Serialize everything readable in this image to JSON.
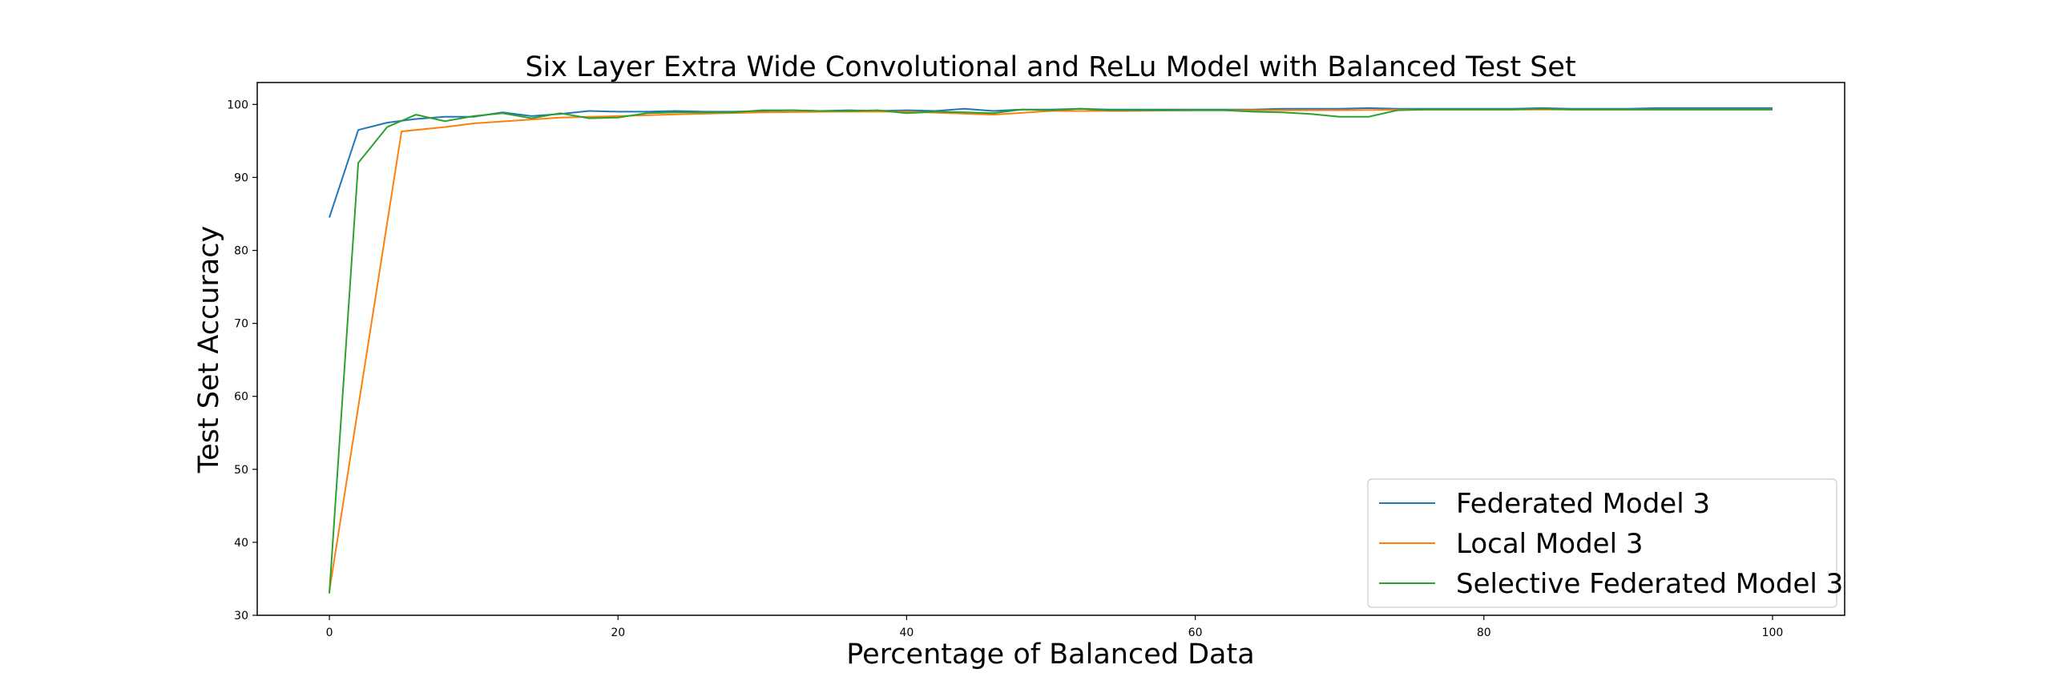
{
  "chart_data": {
    "type": "line",
    "title": "Six Layer Extra Wide Convolutional and ReLu Model with Balanced Test Set",
    "xlabel": "Percentage of Balanced Data",
    "ylabel": "Test Set Accuracy",
    "xlim": [
      -5,
      105
    ],
    "ylim": [
      30,
      103
    ],
    "xticks": [
      0,
      20,
      40,
      60,
      80,
      100
    ],
    "yticks": [
      30,
      40,
      50,
      60,
      70,
      80,
      90,
      100
    ],
    "xtick_labels": [
      "0",
      "20",
      "40",
      "60",
      "80",
      "100"
    ],
    "ytick_labels": [
      "30",
      "40",
      "50",
      "60",
      "70",
      "80",
      "90",
      "100"
    ],
    "grid": false,
    "legend_position": "bottom-right",
    "series": [
      {
        "name": "Federated Model 3",
        "color": "#1f77b4",
        "x": [
          0,
          2,
          4,
          6,
          8,
          10,
          12,
          14,
          16,
          18,
          20,
          22,
          24,
          26,
          28,
          30,
          32,
          34,
          36,
          38,
          40,
          42,
          44,
          46,
          48,
          50,
          52,
          54,
          56,
          58,
          60,
          62,
          64,
          66,
          68,
          70,
          72,
          74,
          76,
          78,
          80,
          82,
          84,
          86,
          88,
          90,
          92,
          94,
          96,
          98,
          100
        ],
        "y": [
          84.5,
          96.5,
          97.5,
          98.0,
          98.3,
          98.3,
          98.9,
          98.4,
          98.7,
          99.1,
          99.0,
          99.0,
          99.1,
          99.0,
          99.0,
          99.1,
          99.2,
          99.1,
          99.2,
          99.1,
          99.2,
          99.1,
          99.4,
          99.1,
          99.3,
          99.3,
          99.4,
          99.3,
          99.3,
          99.3,
          99.3,
          99.3,
          99.3,
          99.4,
          99.4,
          99.4,
          99.5,
          99.4,
          99.4,
          99.4,
          99.4,
          99.4,
          99.5,
          99.4,
          99.4,
          99.4,
          99.5,
          99.5,
          99.5,
          99.5,
          99.5
        ]
      },
      {
        "name": "Local Model 3",
        "color": "#ff7f0e",
        "x": [
          0,
          5,
          8,
          10,
          13,
          16,
          20,
          25,
          30,
          35,
          40,
          46,
          50,
          55,
          60,
          65,
          70,
          75,
          80,
          85,
          90,
          95,
          100
        ],
        "y": [
          33.3,
          96.3,
          96.9,
          97.4,
          97.8,
          98.2,
          98.4,
          98.7,
          98.9,
          99.0,
          99.0,
          98.6,
          99.1,
          99.1,
          99.2,
          99.2,
          99.2,
          99.3,
          99.3,
          99.3,
          99.3,
          99.3,
          99.3
        ]
      },
      {
        "name": "Selective Federated Model 3",
        "color": "#2ca02c",
        "x": [
          0,
          2,
          4,
          6,
          8,
          10,
          12,
          14,
          16,
          18,
          20,
          22,
          24,
          26,
          28,
          30,
          32,
          34,
          36,
          38,
          40,
          42,
          44,
          46,
          48,
          50,
          52,
          54,
          56,
          58,
          60,
          62,
          64,
          66,
          68,
          70,
          72,
          74,
          76,
          78,
          80,
          82,
          84,
          86,
          88,
          90,
          92,
          94,
          96,
          98,
          100
        ],
        "y": [
          33.0,
          92.0,
          96.9,
          98.6,
          97.7,
          98.4,
          98.8,
          98.1,
          98.8,
          98.1,
          98.2,
          98.8,
          98.9,
          98.9,
          98.9,
          99.2,
          99.2,
          99.1,
          99.1,
          99.2,
          98.8,
          99.0,
          98.9,
          98.8,
          99.3,
          99.2,
          99.4,
          99.2,
          99.2,
          99.2,
          99.2,
          99.2,
          99.0,
          98.9,
          98.7,
          98.3,
          98.3,
          99.2,
          99.3,
          99.3,
          99.3,
          99.3,
          99.4,
          99.3,
          99.3,
          99.3,
          99.3,
          99.3,
          99.3,
          99.3,
          99.3
        ]
      }
    ]
  }
}
